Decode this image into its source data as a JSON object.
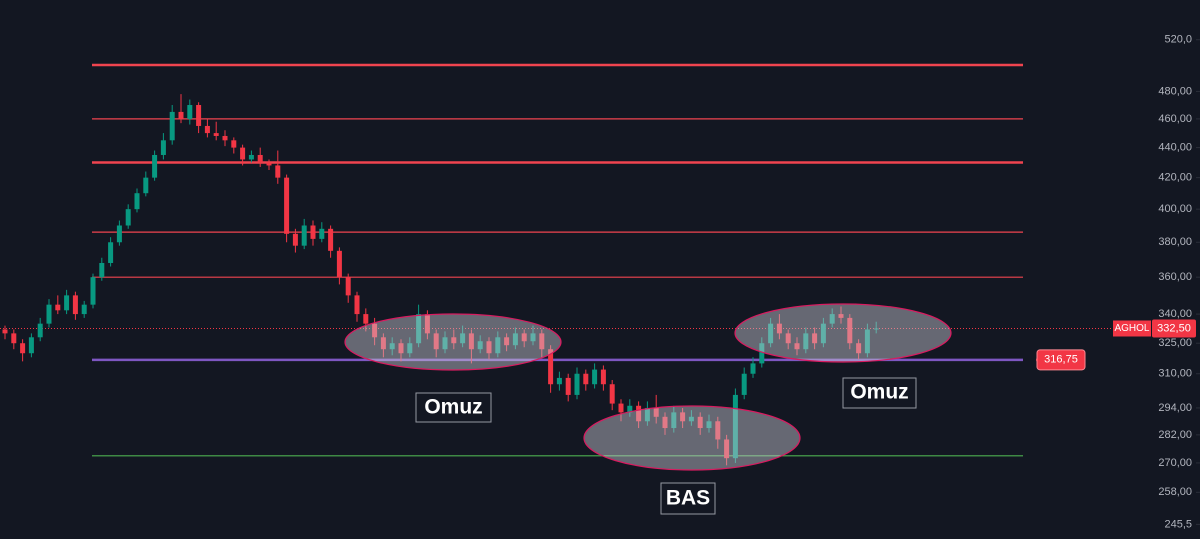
{
  "chart_data": {
    "type": "candlestick",
    "log_scale": true,
    "ylim": [
      240,
      553
    ],
    "yticks": [
      {
        "value": 520,
        "label": "520,0"
      },
      {
        "value": 480,
        "label": "480,00"
      },
      {
        "value": 460,
        "label": "460,00"
      },
      {
        "value": 440,
        "label": "440,00"
      },
      {
        "value": 420,
        "label": "420,00"
      },
      {
        "value": 400,
        "label": "400,00"
      },
      {
        "value": 380,
        "label": "380,00"
      },
      {
        "value": 360,
        "label": "360,00"
      },
      {
        "value": 340,
        "label": "340,00"
      },
      {
        "value": 325,
        "label": "325,00"
      },
      {
        "value": 310,
        "label": "310,00"
      },
      {
        "value": 294,
        "label": "294,00"
      },
      {
        "value": 282,
        "label": "282,00"
      },
      {
        "value": 270,
        "label": "270,00"
      },
      {
        "value": 258,
        "label": "258,00"
      },
      {
        "value": 245.5,
        "label": "245,5"
      }
    ],
    "up_color": "#089981",
    "down_color": "#f23645",
    "candles": [
      [
        332,
        334,
        327,
        330
      ],
      [
        330,
        332,
        322,
        325
      ],
      [
        325,
        327,
        316,
        320
      ],
      [
        320,
        330,
        318,
        328
      ],
      [
        328,
        338,
        326,
        335
      ],
      [
        335,
        348,
        333,
        345
      ],
      [
        345,
        350,
        340,
        342
      ],
      [
        342,
        353,
        340,
        350
      ],
      [
        350,
        352,
        337,
        340
      ],
      [
        340,
        347,
        338,
        345
      ],
      [
        345,
        362,
        343,
        360
      ],
      [
        360,
        371,
        358,
        368
      ],
      [
        368,
        383,
        366,
        380
      ],
      [
        380,
        393,
        378,
        390
      ],
      [
        390,
        403,
        388,
        400
      ],
      [
        400,
        413,
        398,
        410
      ],
      [
        410,
        424,
        408,
        420
      ],
      [
        420,
        438,
        418,
        435
      ],
      [
        435,
        450,
        432,
        445
      ],
      [
        445,
        470,
        442,
        465
      ],
      [
        465,
        478,
        457,
        460
      ],
      [
        460,
        474,
        456,
        470
      ],
      [
        470,
        472,
        450,
        455
      ],
      [
        455,
        460,
        447,
        450
      ],
      [
        450,
        458,
        445,
        448
      ],
      [
        448,
        452,
        441,
        445
      ],
      [
        445,
        447,
        436,
        440
      ],
      [
        440,
        442,
        428,
        432
      ],
      [
        432,
        438,
        430,
        435
      ],
      [
        435,
        440,
        427,
        430
      ],
      [
        430,
        432,
        425,
        428
      ],
      [
        428,
        438,
        416,
        420
      ],
      [
        420,
        422,
        380,
        385
      ],
      [
        385,
        388,
        374,
        378
      ],
      [
        378,
        394,
        376,
        390
      ],
      [
        390,
        393,
        378,
        382
      ],
      [
        382,
        392,
        380,
        388
      ],
      [
        388,
        390,
        371,
        375
      ],
      [
        375,
        377,
        356,
        360
      ],
      [
        360,
        362,
        346,
        350
      ],
      [
        350,
        352,
        336,
        340
      ],
      [
        340,
        343,
        331,
        335
      ],
      [
        335,
        338,
        324,
        328
      ],
      [
        328,
        330,
        318,
        322
      ],
      [
        322,
        328,
        319,
        325
      ],
      [
        325,
        327,
        316,
        320
      ],
      [
        320,
        328,
        318,
        325
      ],
      [
        325,
        345,
        323,
        340
      ],
      [
        340,
        342,
        327,
        330
      ],
      [
        330,
        332,
        318,
        322
      ],
      [
        322,
        331,
        320,
        328
      ],
      [
        328,
        332,
        322,
        325
      ],
      [
        325,
        334,
        323,
        330
      ],
      [
        330,
        332,
        315,
        322
      ],
      [
        322,
        329,
        320,
        326
      ],
      [
        326,
        328,
        317,
        320
      ],
      [
        320,
        331,
        318,
        328
      ],
      [
        328,
        330,
        321,
        324
      ],
      [
        324,
        333,
        322,
        330
      ],
      [
        330,
        332,
        323,
        326
      ],
      [
        326,
        334,
        324,
        330
      ],
      [
        330,
        332,
        318,
        322
      ],
      [
        322,
        324,
        301,
        305
      ],
      [
        305,
        311,
        302,
        308
      ],
      [
        308,
        310,
        297,
        300
      ],
      [
        300,
        313,
        298,
        310
      ],
      [
        310,
        312,
        302,
        305
      ],
      [
        305,
        315,
        303,
        312
      ],
      [
        312,
        314,
        302,
        305
      ],
      [
        305,
        307,
        293,
        296
      ],
      [
        296,
        298,
        288,
        292
      ],
      [
        292,
        298,
        290,
        295
      ],
      [
        295,
        297,
        285,
        288
      ],
      [
        288,
        297,
        286,
        294
      ],
      [
        294,
        300,
        287,
        290
      ],
      [
        290,
        292,
        282,
        285
      ],
      [
        285,
        295,
        283,
        292
      ],
      [
        292,
        294,
        285,
        288
      ],
      [
        288,
        293,
        286,
        290
      ],
      [
        290,
        292,
        282,
        285
      ],
      [
        285,
        291,
        283,
        288
      ],
      [
        288,
        290,
        276,
        280
      ],
      [
        280,
        282,
        269,
        272
      ],
      [
        272,
        303,
        270,
        300
      ],
      [
        300,
        313,
        298,
        310
      ],
      [
        310,
        318,
        308,
        315
      ],
      [
        315,
        328,
        313,
        325
      ],
      [
        325,
        338,
        323,
        335
      ],
      [
        335,
        340,
        327,
        330
      ],
      [
        330,
        332,
        322,
        325
      ],
      [
        325,
        328,
        319,
        322
      ],
      [
        322,
        333,
        320,
        330
      ],
      [
        330,
        333,
        322,
        325
      ],
      [
        325,
        338,
        323,
        335
      ],
      [
        335,
        343,
        333,
        340
      ],
      [
        340,
        344,
        335,
        338
      ],
      [
        338,
        340,
        322,
        325
      ],
      [
        325,
        327,
        317,
        320
      ],
      [
        320,
        335,
        318,
        332
      ],
      [
        332,
        336,
        330,
        332.5
      ]
    ],
    "levels": [
      {
        "value": 500,
        "color": "#f0444f"
      },
      {
        "value": 460,
        "color": "#f0444f"
      },
      {
        "value": 430,
        "color": "#f0444f"
      },
      {
        "value": 386,
        "color": "#f0444f"
      },
      {
        "value": 360,
        "color": "#f0444f"
      },
      {
        "value": 316.75,
        "label": "316,75",
        "color": "#7e57c2"
      },
      {
        "value": 273,
        "color": "#4caf50"
      }
    ],
    "last_price": {
      "symbol": "AGHOL",
      "value": 332.5,
      "label": "332,50"
    },
    "annotations": [
      "Omuz",
      "BAS",
      "Omuz"
    ]
  }
}
